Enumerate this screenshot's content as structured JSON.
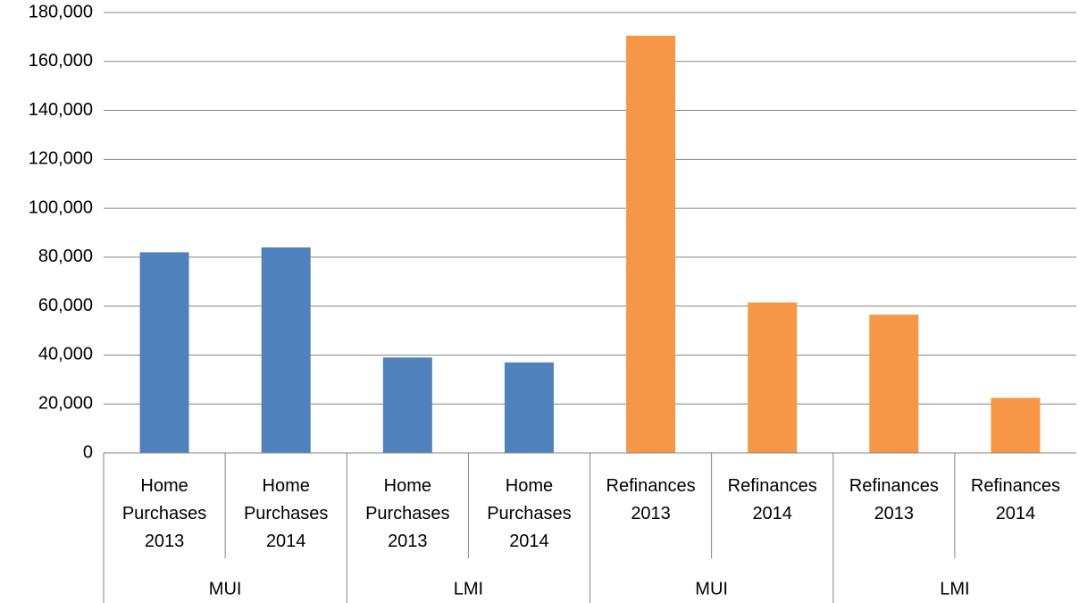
{
  "chart_data": {
    "type": "bar",
    "categories": [
      "Home Purchases 2013",
      "Home Purchases 2014",
      "Home Purchases 2013",
      "Home Purchases 2014",
      "Refinances 2013",
      "Refinances 2014",
      "Refinances 2013",
      "Refinances 2014"
    ],
    "groups": [
      "MUI",
      "LMI",
      "MUI",
      "LMI"
    ],
    "values": [
      82000,
      84000,
      39000,
      37000,
      170500,
      61500,
      56500,
      22500
    ],
    "colors": [
      "#4f81bd",
      "#4f81bd",
      "#4f81bd",
      "#4f81bd",
      "#f79646",
      "#f79646",
      "#f79646",
      "#f79646"
    ],
    "ylim": [
      0,
      180000
    ],
    "yticks": [
      0,
      {
        "value": 20000,
        "label": "20,000"
      },
      {
        "value": 40000,
        "label": "40,000"
      },
      {
        "value": 60000,
        "label": "60,000"
      },
      {
        "value": 80000,
        "label": "80,000"
      },
      {
        "value": 100000,
        "label": "100,000"
      },
      {
        "value": 120000,
        "label": "120,000"
      },
      {
        "value": 140000,
        "label": "140,000"
      },
      {
        "value": 160000,
        "label": "160,000"
      },
      {
        "value": 180000,
        "label": "180,000"
      }
    ],
    "grid": true
  }
}
